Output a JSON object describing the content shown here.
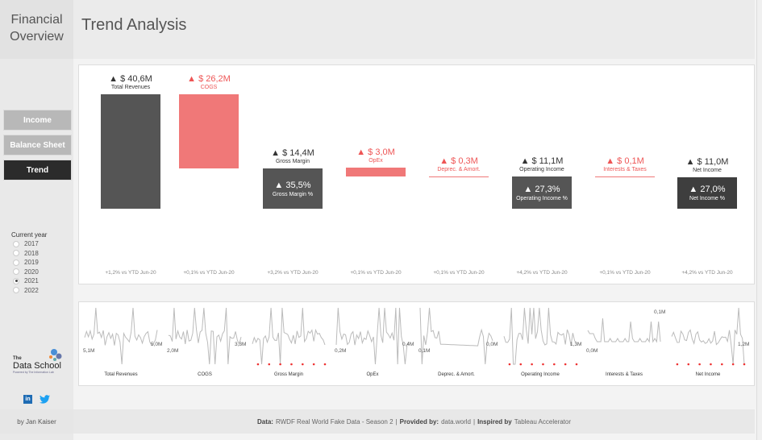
{
  "sidebar": {
    "brand": [
      "Financial",
      "Overview"
    ],
    "nav": [
      {
        "label": "Income",
        "active": false
      },
      {
        "label": "Balance Sheet",
        "active": false
      },
      {
        "label": "Trend",
        "active": true
      }
    ],
    "year_filter": {
      "label": "Current year",
      "options": [
        "2017",
        "2018",
        "2019",
        "2020",
        "2021",
        "2022"
      ],
      "selected": "2021"
    },
    "logo": {
      "the": "The",
      "name": "Data School",
      "powered": "Powered by The Information Lab"
    },
    "social": [
      "linkedin-icon",
      "twitter-icon"
    ],
    "byline": "by Jan Kaiser"
  },
  "header": {
    "title": "Trend Analysis"
  },
  "colors": {
    "dark": "#555555",
    "negative": "#f07878",
    "negative_text": "#ee5555"
  },
  "waterfall": [
    {
      "value": "▲ $ 40,6M",
      "label": "Total Revenues",
      "type": "total",
      "comparison": "+1,2% vs YTD Jun-20"
    },
    {
      "value": "▲ $ 26,2M",
      "label": "COGS",
      "type": "cost",
      "comparison": "+0,1% vs YTD Jun-20"
    },
    {
      "value": "▲ $ 14,4M",
      "label": "Gross Margin",
      "type": "total",
      "pct": "▲ 35,5%",
      "pct_label": "Gross Margin %",
      "comparison": "+3,2% vs YTD Jun-20"
    },
    {
      "value": "▲ $ 3,0M",
      "label": "OpEx",
      "type": "cost",
      "comparison": "+0,1% vs YTD Jun-20"
    },
    {
      "value": "▲ $ 0,3M",
      "label": "Deprec. & Amort.",
      "type": "cost",
      "comparison": "+0,1% vs YTD Jun-20"
    },
    {
      "value": "▲ $ 11,1M",
      "label": "Operating Income",
      "type": "total",
      "pct": "▲ 27,3%",
      "pct_label": "Operating Income %",
      "comparison": "+4,2% vs YTD Jun-20"
    },
    {
      "value": "▲ $ 0,1M",
      "label": "Interests & Taxes",
      "type": "cost",
      "comparison": "+0,1% vs YTD Jun-20"
    },
    {
      "value": "▲ $ 11,0M",
      "label": "Net Income",
      "type": "total",
      "pct": "▲ 27,0%",
      "pct_label": "Net Income %",
      "comparison": "+4,2% vs YTD Jun-20"
    }
  ],
  "sparklines": [
    {
      "label": "Total Revenues",
      "start": "5,1M",
      "end": "5,0M"
    },
    {
      "label": "COGS",
      "start": "2,0M",
      "end": "3,3M"
    },
    {
      "label": "Gross Margin",
      "start": "",
      "end": ""
    },
    {
      "label": "OpEx",
      "start": "0,2M",
      "end": "0,4M"
    },
    {
      "label": "Deprec. & Amort.",
      "start": "0,1M",
      "end": "0,0M"
    },
    {
      "label": "Operating Income",
      "start": "",
      "end": "1,3M"
    },
    {
      "label": "Interests & Taxes",
      "start": "0,0M",
      "end": "0,1M"
    },
    {
      "label": "Net Income",
      "start": "",
      "end": "1,2M"
    }
  ],
  "footer": {
    "data_label": "Data:",
    "data_value": "RWDF Real World Fake Data - Season 2",
    "provided_label": "Provided by:",
    "provided_value": "data.world",
    "inspired_label": "Inspired by",
    "inspired_value": "Tableau Accelerator",
    "sep": "|"
  }
}
